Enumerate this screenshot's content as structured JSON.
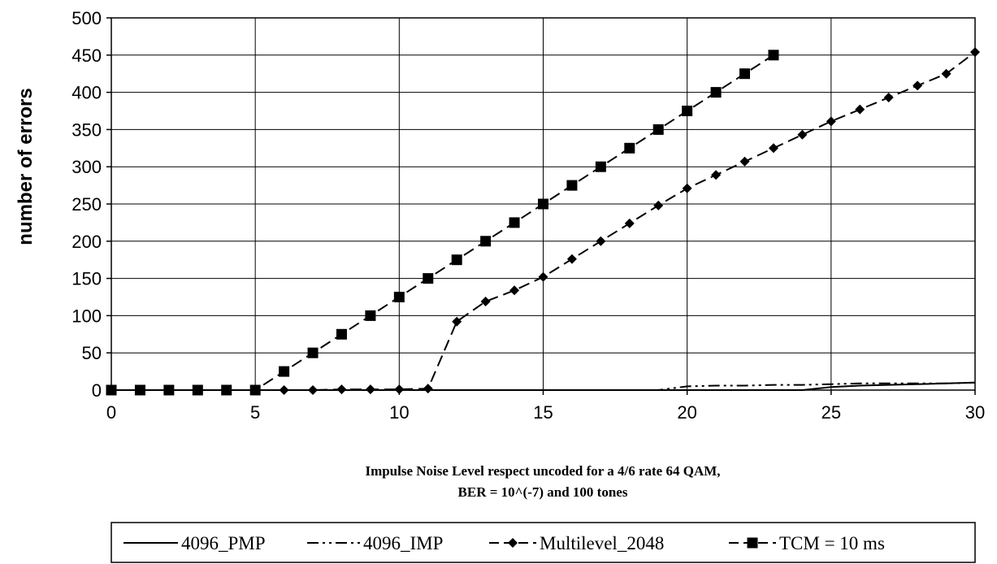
{
  "chart_data": {
    "type": "line",
    "title": "",
    "xlabel": [
      "Impulse Noise Level respect uncoded for a 4/6 rate 64 QAM,",
      "BER = 10^(-7) and 100 tones"
    ],
    "ylabel": "number of errors",
    "xlim": [
      0,
      30
    ],
    "ylim": [
      0,
      500
    ],
    "xticks": [
      0,
      5,
      10,
      15,
      20,
      25,
      30
    ],
    "yticks": [
      0,
      50,
      100,
      150,
      200,
      250,
      300,
      350,
      400,
      450,
      500
    ],
    "grid": true,
    "legend_position": "bottom",
    "series": [
      {
        "name": "4096_PMP",
        "style": "solid",
        "marker": "none",
        "color": "#000000",
        "x": [
          0,
          5,
          10,
          15,
          20,
          24,
          25,
          26,
          27,
          28,
          29,
          30
        ],
        "y": [
          0,
          0,
          0,
          0,
          0,
          0,
          4,
          6,
          7,
          8,
          9,
          10
        ]
      },
      {
        "name": "4096_IMP",
        "style": "dash-dot-dot",
        "marker": "none",
        "color": "#000000",
        "x": [
          0,
          5,
          10,
          11,
          15,
          19,
          20,
          21,
          22,
          23,
          24,
          25,
          26,
          27,
          28,
          29,
          30
        ],
        "y": [
          0,
          0,
          0,
          0,
          0,
          0,
          5,
          6,
          6,
          7,
          7,
          8,
          9,
          9,
          9,
          9,
          10
        ]
      },
      {
        "name": "Multilevel_2048",
        "style": "dashed",
        "marker": "diamond",
        "color": "#000000",
        "x": [
          0,
          1,
          2,
          3,
          4,
          5,
          6,
          7,
          8,
          9,
          10,
          11,
          12,
          13,
          14,
          15,
          16,
          17,
          18,
          19,
          20,
          21,
          22,
          23,
          24,
          25,
          26,
          27,
          28,
          29,
          30
        ],
        "y": [
          0,
          0,
          0,
          0,
          0,
          0,
          0,
          0,
          1,
          1,
          1,
          2,
          92,
          119,
          134,
          152,
          176,
          200,
          224,
          248,
          271,
          289,
          307,
          325,
          343,
          361,
          377,
          393,
          409,
          425,
          454
        ]
      },
      {
        "name": "TCM = 10 ms",
        "style": "dashed",
        "marker": "square",
        "color": "#000000",
        "x": [
          0,
          1,
          2,
          3,
          4,
          5,
          6,
          7,
          8,
          9,
          10,
          11,
          12,
          13,
          14,
          15,
          16,
          17,
          18,
          19,
          20,
          21,
          22,
          23
        ],
        "y": [
          0,
          0,
          0,
          0,
          0,
          0,
          25,
          50,
          75,
          100,
          125,
          150,
          175,
          200,
          225,
          250,
          275,
          300,
          325,
          350,
          375,
          400,
          425,
          450
        ]
      }
    ]
  }
}
